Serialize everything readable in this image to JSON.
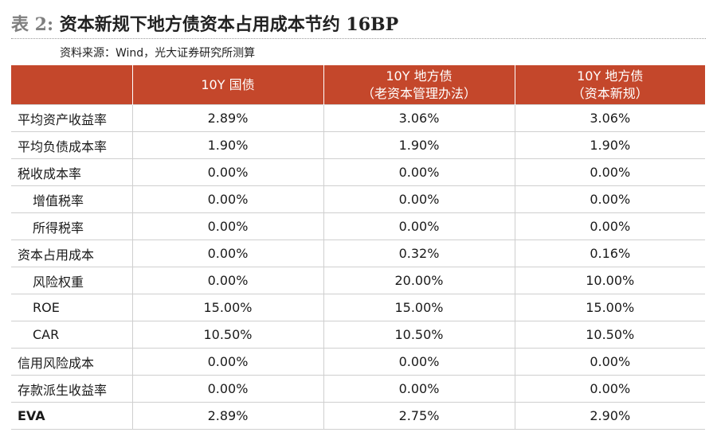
{
  "title": {
    "label": "表 2:",
    "text": "资本新规下地方债资本占用成本节约 16BP"
  },
  "source": "资料来源：Wind，光大证券研究所测算",
  "table": {
    "headers": [
      [
        "",
        ""
      ],
      [
        "10Y 国债",
        ""
      ],
      [
        "10Y 地方债",
        "（老资本管理办法）"
      ],
      [
        "10Y 地方债",
        "（资本新规）"
      ]
    ],
    "rows": [
      {
        "label": "平均资产收益率",
        "indent": false,
        "values": [
          "2.89%",
          "3.06%",
          "3.06%"
        ]
      },
      {
        "label": "平均负债成本率",
        "indent": false,
        "values": [
          "1.90%",
          "1.90%",
          "1.90%"
        ]
      },
      {
        "label": "税收成本率",
        "indent": false,
        "values": [
          "0.00%",
          "0.00%",
          "0.00%"
        ]
      },
      {
        "label": "增值税率",
        "indent": true,
        "values": [
          "0.00%",
          "0.00%",
          "0.00%"
        ]
      },
      {
        "label": "所得税率",
        "indent": true,
        "values": [
          "0.00%",
          "0.00%",
          "0.00%"
        ]
      },
      {
        "label": "资本占用成本",
        "indent": false,
        "values": [
          "0.00%",
          "0.32%",
          "0.16%"
        ]
      },
      {
        "label": "风险权重",
        "indent": true,
        "values": [
          "0.00%",
          "20.00%",
          "10.00%"
        ]
      },
      {
        "label": "ROE",
        "indent": true,
        "values": [
          "15.00%",
          "15.00%",
          "15.00%"
        ]
      },
      {
        "label": "CAR",
        "indent": true,
        "values": [
          "10.50%",
          "10.50%",
          "10.50%"
        ]
      },
      {
        "label": "信用风险成本",
        "indent": false,
        "values": [
          "0.00%",
          "0.00%",
          "0.00%"
        ]
      },
      {
        "label": "存款派生收益率",
        "indent": false,
        "values": [
          "0.00%",
          "0.00%",
          "0.00%"
        ]
      },
      {
        "label": "EVA",
        "indent": false,
        "bold": true,
        "values": [
          "2.89%",
          "2.75%",
          "2.90%"
        ]
      }
    ]
  },
  "colors": {
    "header_bg": "#c4472b",
    "header_text": "#ffffff",
    "title_label": "#7f7f7f"
  }
}
